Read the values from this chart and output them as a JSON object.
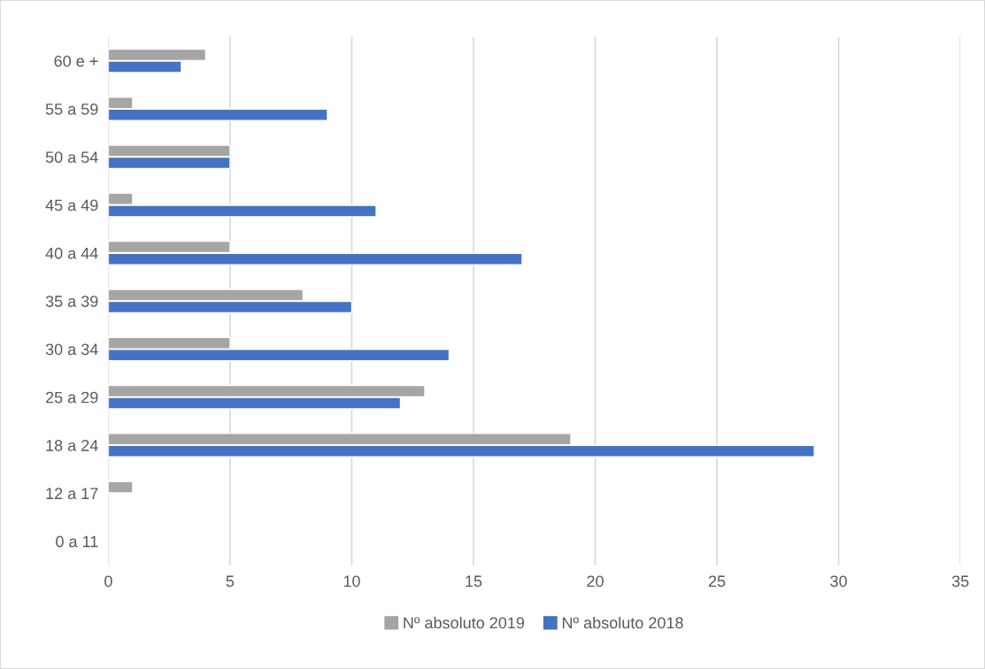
{
  "chart_data": {
    "type": "bar",
    "orientation": "horizontal",
    "categories": [
      "60 e +",
      "55 a 59",
      "50 a 54",
      "45 a 49",
      "40 a 44",
      "35 a 39",
      "30 a 34",
      "25 a 29",
      "18 a 24",
      "12 a 17",
      "0 a 11"
    ],
    "series": [
      {
        "name": "Nº absoluto 2019",
        "color": "#a5a5a5",
        "values": [
          4,
          1,
          5,
          1,
          5,
          8,
          5,
          13,
          19,
          1,
          null
        ]
      },
      {
        "name": "Nº absoluto 2018",
        "color": "#4472c4",
        "values": [
          3,
          9,
          5,
          11,
          17,
          10,
          14,
          12,
          29,
          null,
          null
        ]
      }
    ],
    "xlim": [
      0,
      35
    ],
    "xticks": [
      0,
      5,
      10,
      15,
      20,
      25,
      30,
      35
    ],
    "grid": "x",
    "legend": "bottom"
  }
}
